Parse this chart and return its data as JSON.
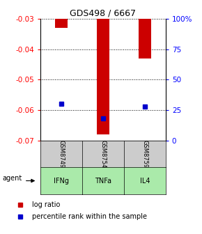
{
  "title": "GDS498 / 6667",
  "samples": [
    "GSM8749",
    "GSM8754",
    "GSM8759"
  ],
  "agents": [
    "IFNg",
    "TNFa",
    "IL4"
  ],
  "log_ratios": [
    -0.033,
    -0.068,
    -0.043
  ],
  "percentile_ranks": [
    30,
    18,
    28
  ],
  "ylim_left": [
    -0.07,
    -0.03
  ],
  "ylim_right": [
    0,
    100
  ],
  "left_ticks": [
    -0.03,
    -0.04,
    -0.05,
    -0.06,
    -0.07
  ],
  "right_ticks": [
    0,
    25,
    50,
    75,
    100
  ],
  "right_tick_labels": [
    "0",
    "25",
    "50",
    "75",
    "100%"
  ],
  "bar_color": "#cc0000",
  "blue_color": "#0000cc",
  "agent_bg_color": "#aaeaaa",
  "sample_bg_color": "#cccccc",
  "grid_color": "#888888",
  "bar_width": 0.3
}
